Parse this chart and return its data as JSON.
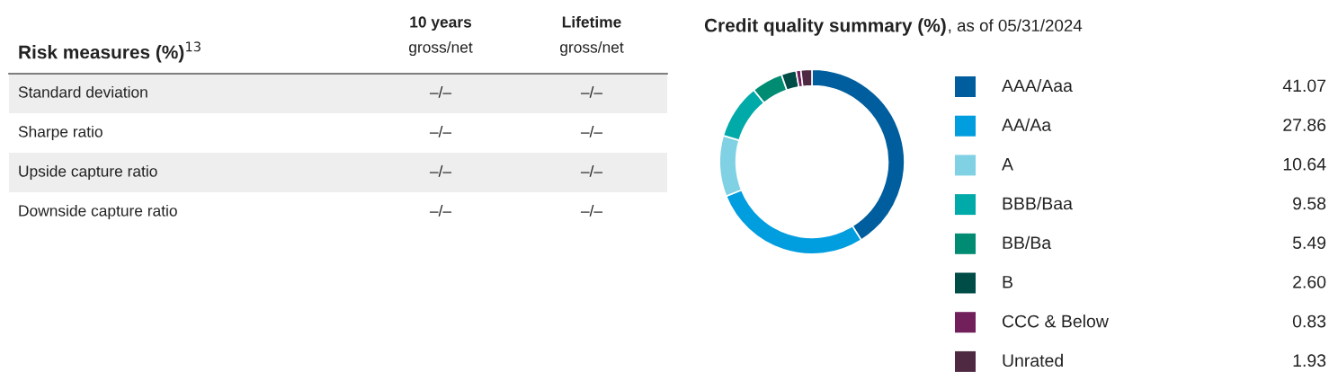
{
  "chart_data": [
    {
      "type": "other",
      "title": "Risk measures (%)$^{13}$",
      "annotations": [
        "10 years",
        "gross/net",
        "Lifetime",
        "gross/net",
        "Standard deviation",
        "–/–",
        "–/–",
        "Sharpe ratio",
        "–/–",
        "–/–",
        "Upside capture ratio",
        "–/–",
        "–/–",
        "Downside capture ratio",
        "–/–",
        "–/–"
      ]
    },
    {
      "type": "donut",
      "title": "Credit quality summary (%)",
      "subtitle": ", as of 05/31/2024",
      "categories": [
        "AAA/Aaa",
        "AA/Aa",
        "A",
        "BBB/Baa",
        "BB/Ba",
        "B",
        "CCC & Below",
        "Unrated"
      ],
      "values": [
        41.07,
        27.86,
        10.64,
        9.58,
        5.49,
        2.6,
        0.83,
        1.93
      ],
      "value_labels": [
        "41.07",
        "27.86",
        "10.64",
        "9.58",
        "5.49",
        "2.60",
        "0.83",
        "1.93"
      ],
      "colors": [
        "#005e9e",
        "#009ddf",
        "#7fd1e3",
        "#00aaa8",
        "#008c73",
        "#004d47",
        "#72205c",
        "#4f2942"
      ],
      "legend": "right"
    }
  ]
}
